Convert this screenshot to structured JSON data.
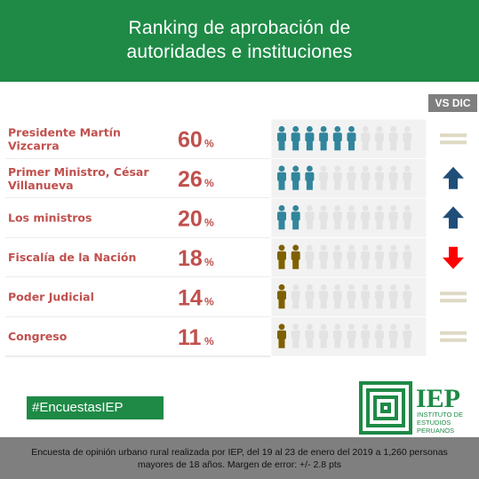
{
  "header": {
    "title_line1": "Ranking de aprobación de",
    "title_line2": "autoridades e instituciones"
  },
  "comparison_label": "VS DIC",
  "hashtag": "#EncuestasIEP",
  "logo": {
    "acronym": "IEP",
    "line1": "INSTITUTO DE",
    "line2": "ESTUDIOS",
    "line3": "PERUANOS"
  },
  "footer": {
    "line1": "Encuesta de opinión urbano rural realizada por IEP, del 19 al 23 de enero del 2019 a 1,260 personas",
    "line2": "mayores de 18 años. Margen de error: +/- 2.8 pts"
  },
  "colors": {
    "green": "#1e8a46",
    "label_red": "#c0504d",
    "blue_figure": "#31859c",
    "gold_figure": "#7f6000",
    "gray_figure": "#e3e3e3",
    "arrow_up": "#1f4e79",
    "arrow_down": "#ff0000",
    "equal": "#ddd9c3"
  },
  "chart_data": {
    "type": "table",
    "percent_sign": "%",
    "rows": [
      {
        "label_lines": [
          "Presidente  Martín",
          "Vizcarra"
        ],
        "value": 60,
        "figure_color": "blue",
        "trend": "equal"
      },
      {
        "label_lines": [
          "Primer Ministro, César",
          "Villanueva"
        ],
        "value": 26,
        "figure_color": "blue",
        "trend": "up"
      },
      {
        "label_lines": [
          "Los ministros"
        ],
        "value": 20,
        "figure_color": "blue",
        "trend": "up"
      },
      {
        "label_lines": [
          "Fiscalía de la Nación"
        ],
        "value": 18,
        "figure_color": "gold",
        "trend": "down"
      },
      {
        "label_lines": [
          "Poder Judicial"
        ],
        "value": 14,
        "figure_color": "gold",
        "trend": "equal"
      },
      {
        "label_lines": [
          "Congreso"
        ],
        "value": 11,
        "figure_color": "gold",
        "trend": "equal"
      }
    ],
    "figures_per_row": 10
  }
}
